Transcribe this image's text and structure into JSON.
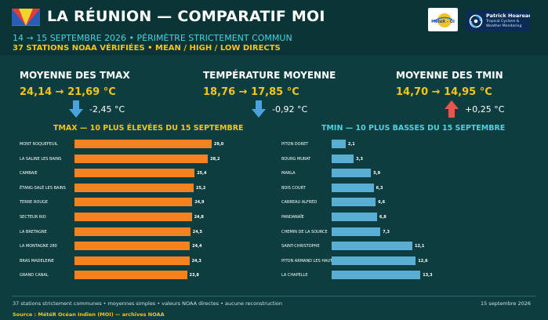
{
  "header": {
    "title": "LA RÉUNION — COMPARATIF MOI",
    "subtitle": "14 → 15 SEPTEMBRE 2026 • PÉRIMÈTRE STRICTEMENT COMMUN",
    "subtitle2": "37 STATIONS NOAA VÉRIFIÉES • MEAN / HIGH / LOW DIRECTS",
    "logo_meteor_text": "MétéR - OI",
    "logo_ph_name": "Patrick Hoareau",
    "logo_ph_line1": "Tropical Cyclone &",
    "logo_ph_line2": "Weather Monitoring"
  },
  "kpis": [
    {
      "title": "MOYENNE DES TMAX",
      "value": "24,14 → 21,69 °C",
      "delta": "-2,45 °C",
      "direction": "down",
      "arrow_color": "#4aa3df"
    },
    {
      "title": "TEMPÉRATURE MOYENNE",
      "value": "18,76 → 17,85 °C",
      "delta": "-0,92 °C",
      "direction": "down",
      "arrow_color": "#4aa3df"
    },
    {
      "title": "MOYENNE DES TMIN",
      "value": "14,70 → 14,95 °C",
      "delta": "+0,25 °C",
      "direction": "up",
      "arrow_color": "#e8554a"
    }
  ],
  "chart_data": [
    {
      "type": "bar",
      "orientation": "horizontal",
      "title": "TMAX — 10 PLUS ÉLEVÉES DU 15 SEPTEMBRE",
      "color": "#f5821f",
      "title_color": "#f3c619",
      "categories": [
        "MONT ROQUEFEUIL",
        "LA SALINE LES BAINS",
        "CAMBAIE",
        "ÉTANG-SALÉ LES BAINS",
        "TERRE ROUGE",
        "SECTEUR RIO",
        "LA BRETAGNE",
        "LA MONTAGNE 280",
        "BRAS MADELEINE",
        "GRAND CANAL"
      ],
      "values": [
        29.0,
        28.2,
        25.4,
        25.2,
        24.9,
        24.8,
        24.5,
        24.4,
        24.3,
        23.8
      ],
      "value_labels": [
        "29,0",
        "28,2",
        "25,4",
        "25,2",
        "24,9",
        "24,8",
        "24,5",
        "24,4",
        "24,3",
        "23,8"
      ],
      "xlim": [
        0,
        31.5
      ]
    },
    {
      "type": "bar",
      "orientation": "horizontal",
      "title": "TMIN — 10 PLUS BASSES DU 15 SEPTEMBRE",
      "color": "#5aaed3",
      "title_color": "#4fd2de",
      "categories": [
        "PITON DORET",
        "BOURG MURAT",
        "MARLA",
        "BOIS COURT",
        "CARREAU ALFRED",
        "PANDANAÏE",
        "CHEMIN DE LA SOURCE",
        "SAINT-CHRISTOPHE",
        "PITON ARMAND LES HAUTS",
        "LA CHAPELLE"
      ],
      "values": [
        2.1,
        3.3,
        5.9,
        6.3,
        6.6,
        6.8,
        7.3,
        12.1,
        12.6,
        13.3
      ],
      "value_labels": [
        "2,1",
        "3,3",
        "5,9",
        "6,3",
        "6,6",
        "6,8",
        "7,3",
        "12,1",
        "12,6",
        "13,3"
      ],
      "xlim": [
        0,
        14.8
      ]
    }
  ],
  "footer": {
    "left": "37 stations strictement communes • moyennes simples • valeurs NOAA directes • aucune reconstruction",
    "right": "15 septembre 2026",
    "source": "Source : MétéR Océan Indien (MOI) — archives NOAA"
  }
}
